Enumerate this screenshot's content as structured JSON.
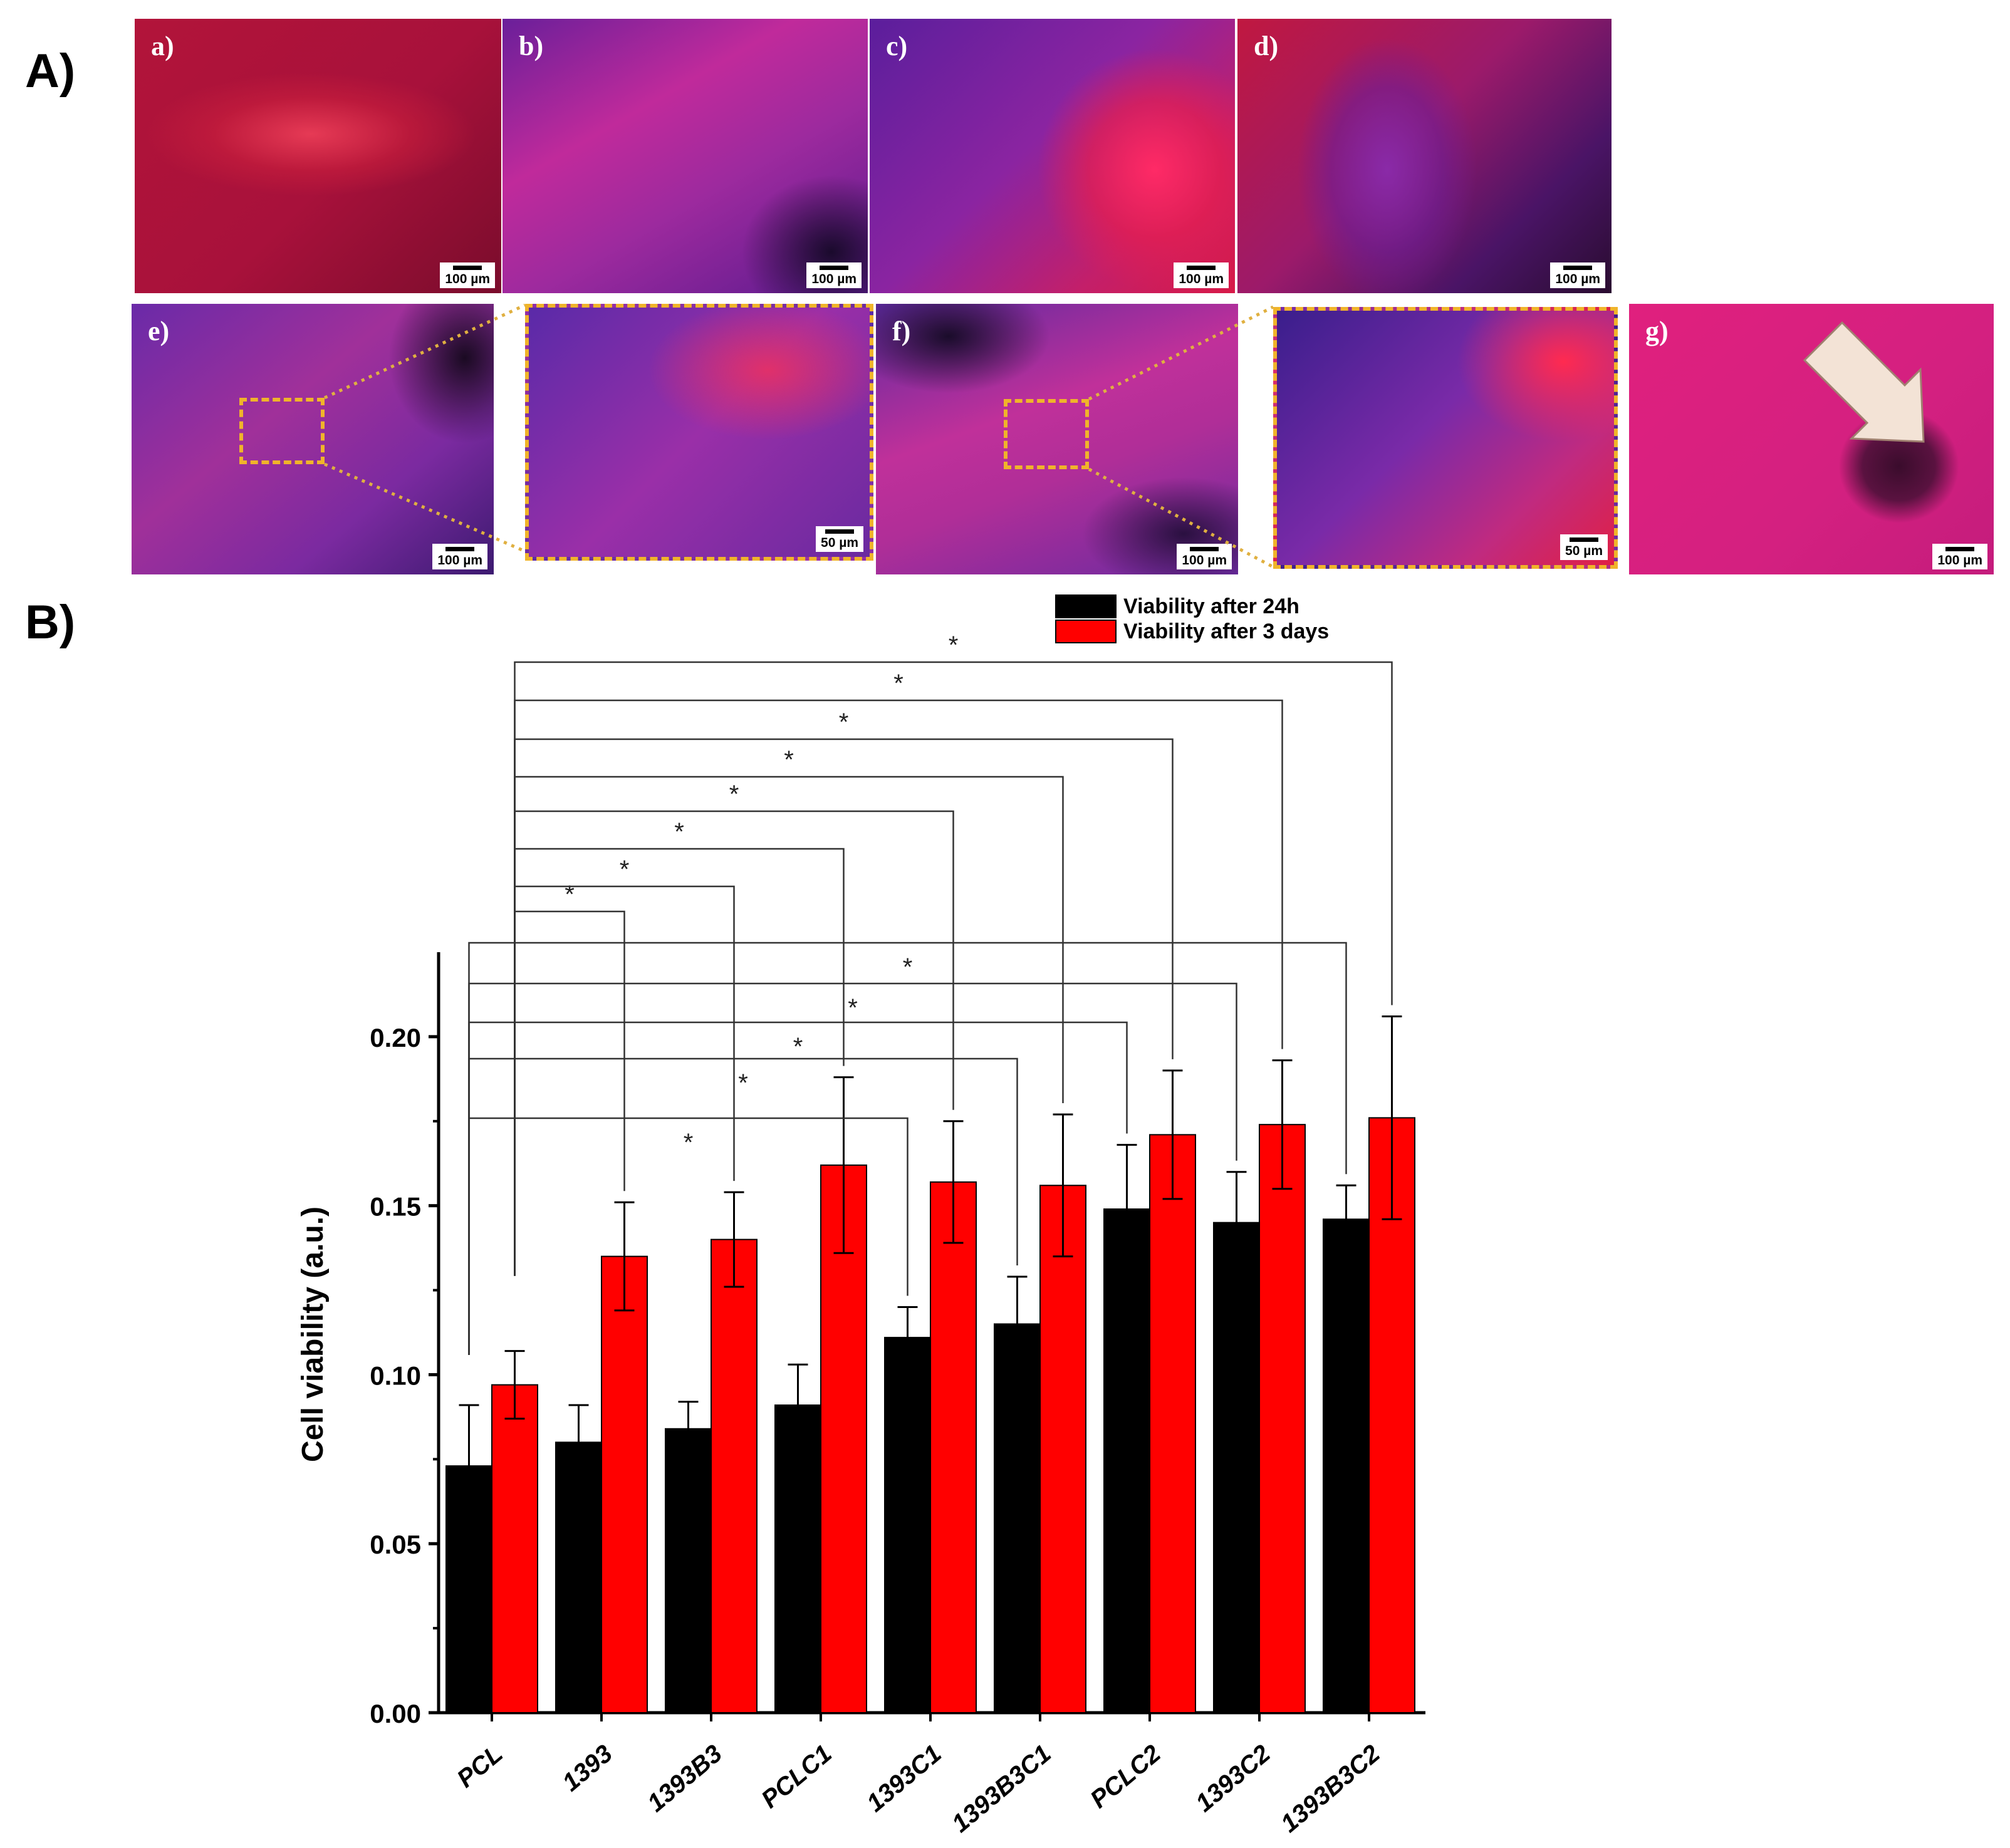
{
  "figure": {
    "section_a_label": "A)",
    "section_b_label": "B)"
  },
  "panels": {
    "a": {
      "letter": "a)",
      "scale": "100 µm"
    },
    "b": {
      "letter": "b)",
      "scale": "100 µm"
    },
    "c": {
      "letter": "c)",
      "scale": "100 µm"
    },
    "d": {
      "letter": "d)",
      "scale": "100 µm"
    },
    "e": {
      "letter": "e)",
      "scale": "100 µm"
    },
    "e_zoom": {
      "scale": "50 µm"
    },
    "f": {
      "letter": "f)",
      "scale": "100 µm"
    },
    "f_zoom": {
      "scale": "50 µm"
    },
    "g": {
      "letter": "g)",
      "scale": "100 µm"
    }
  },
  "chart_data": {
    "type": "bar",
    "title": "",
    "xlabel": "",
    "ylabel": "Cell viability (a.u.)",
    "ylim": [
      0,
      0.225
    ],
    "yticks": [
      0.0,
      0.05,
      0.1,
      0.15,
      0.2
    ],
    "ytick_labels": [
      "0.00",
      "0.05",
      "0.10",
      "0.15",
      "0.20"
    ],
    "categories": [
      "PCL",
      "1393",
      "1393B3",
      "PCLC1",
      "1393C1",
      "1393B3C1",
      "PCLC2",
      "1393C2",
      "1393B3C2"
    ],
    "series": [
      {
        "name": "Viability after 24h",
        "color": "#000000",
        "values": [
          0.073,
          0.08,
          0.084,
          0.091,
          0.111,
          0.115,
          0.149,
          0.145,
          0.146
        ],
        "errors": [
          0.018,
          0.011,
          0.008,
          0.012,
          0.009,
          0.014,
          0.019,
          0.015,
          0.01
        ]
      },
      {
        "name": "Viability after 3 days",
        "color": "#ff0000",
        "values": [
          0.097,
          0.135,
          0.14,
          0.162,
          0.157,
          0.156,
          0.171,
          0.174,
          0.176
        ],
        "errors": [
          0.01,
          0.016,
          0.014,
          0.026,
          0.018,
          0.021,
          0.019,
          0.019,
          0.03
        ]
      }
    ],
    "legend_position": "top-right",
    "significance_marker": "*",
    "significance_3day": [
      "1393",
      "1393B3",
      "PCLC1",
      "1393C1",
      "1393B3C1",
      "PCLC2",
      "1393C2",
      "1393B3C2"
    ],
    "significance_24h": [
      "1393C1",
      "1393B3C1",
      "PCLC2",
      "1393C2",
      "1393B3C2"
    ]
  }
}
